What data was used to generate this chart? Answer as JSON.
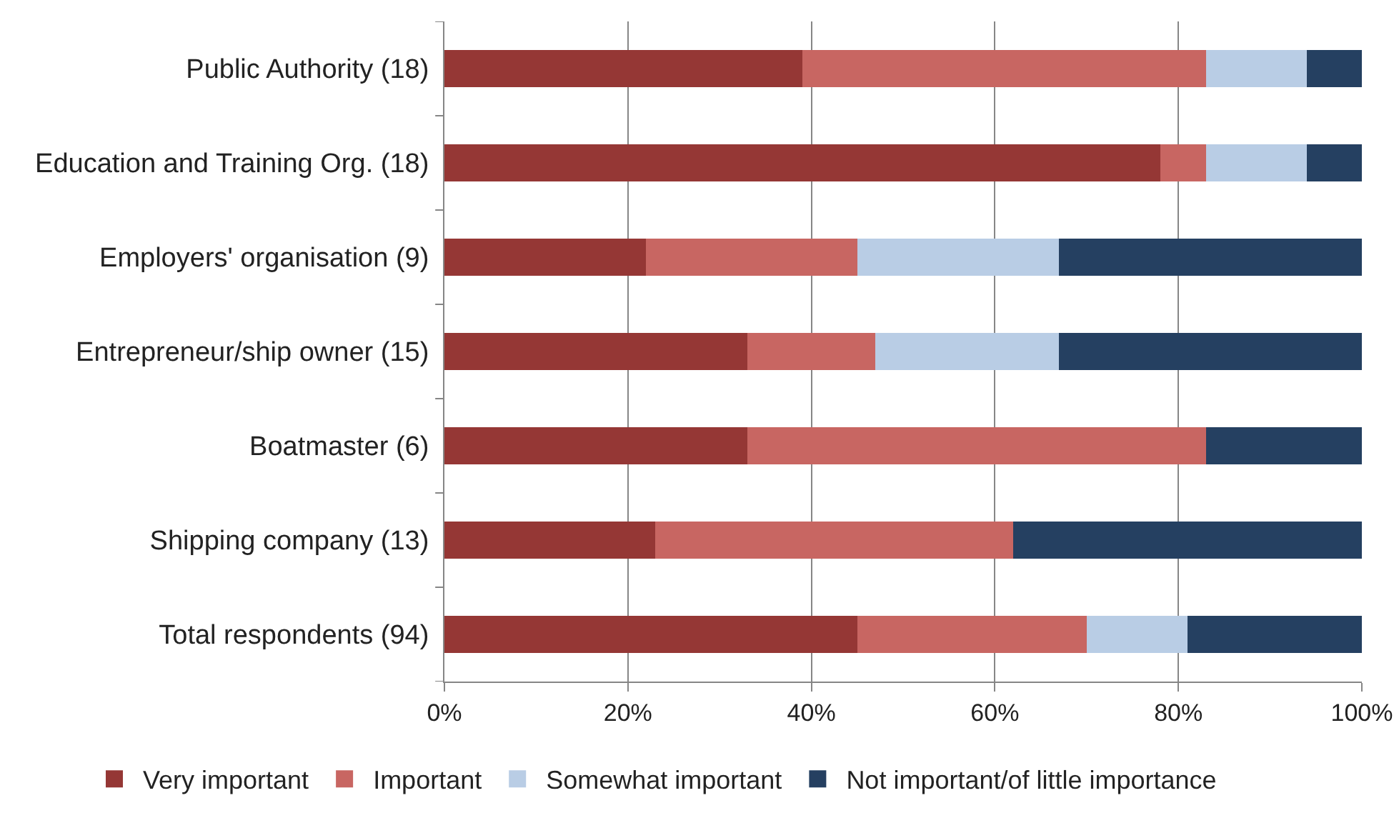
{
  "chart_data": {
    "type": "bar",
    "orientation": "horizontal",
    "stacked": true,
    "categories": [
      "Public Authority (18)",
      "Education and Training Org. (18)",
      "Employers' organisation (9)",
      "Entrepreneur/ship owner (15)",
      "Boatmaster (6)",
      "Shipping company (13)",
      "Total respondents (94)"
    ],
    "series": [
      {
        "name": "Very important",
        "color": "#953735",
        "values": [
          39,
          78,
          22,
          33,
          33,
          23,
          45
        ]
      },
      {
        "name": "Important",
        "color": "#c86662",
        "values": [
          44,
          5,
          23,
          14,
          50,
          39,
          25
        ]
      },
      {
        "name": "Somewhat important",
        "color": "#b9cde5",
        "values": [
          11,
          11,
          22,
          20,
          0,
          0,
          11
        ]
      },
      {
        "name": "Not important/of little importance",
        "color": "#254061",
        "values": [
          6,
          6,
          33,
          33,
          17,
          38,
          19
        ]
      }
    ],
    "xlim": [
      0,
      100
    ],
    "xticks": [
      {
        "value": 0,
        "label": "0%"
      },
      {
        "value": 20,
        "label": "20%"
      },
      {
        "value": 40,
        "label": "40%"
      },
      {
        "value": 60,
        "label": "60%"
      },
      {
        "value": 80,
        "label": "80%"
      },
      {
        "value": 100,
        "label": "100%"
      }
    ],
    "grid": "x",
    "legend": "bottom"
  }
}
